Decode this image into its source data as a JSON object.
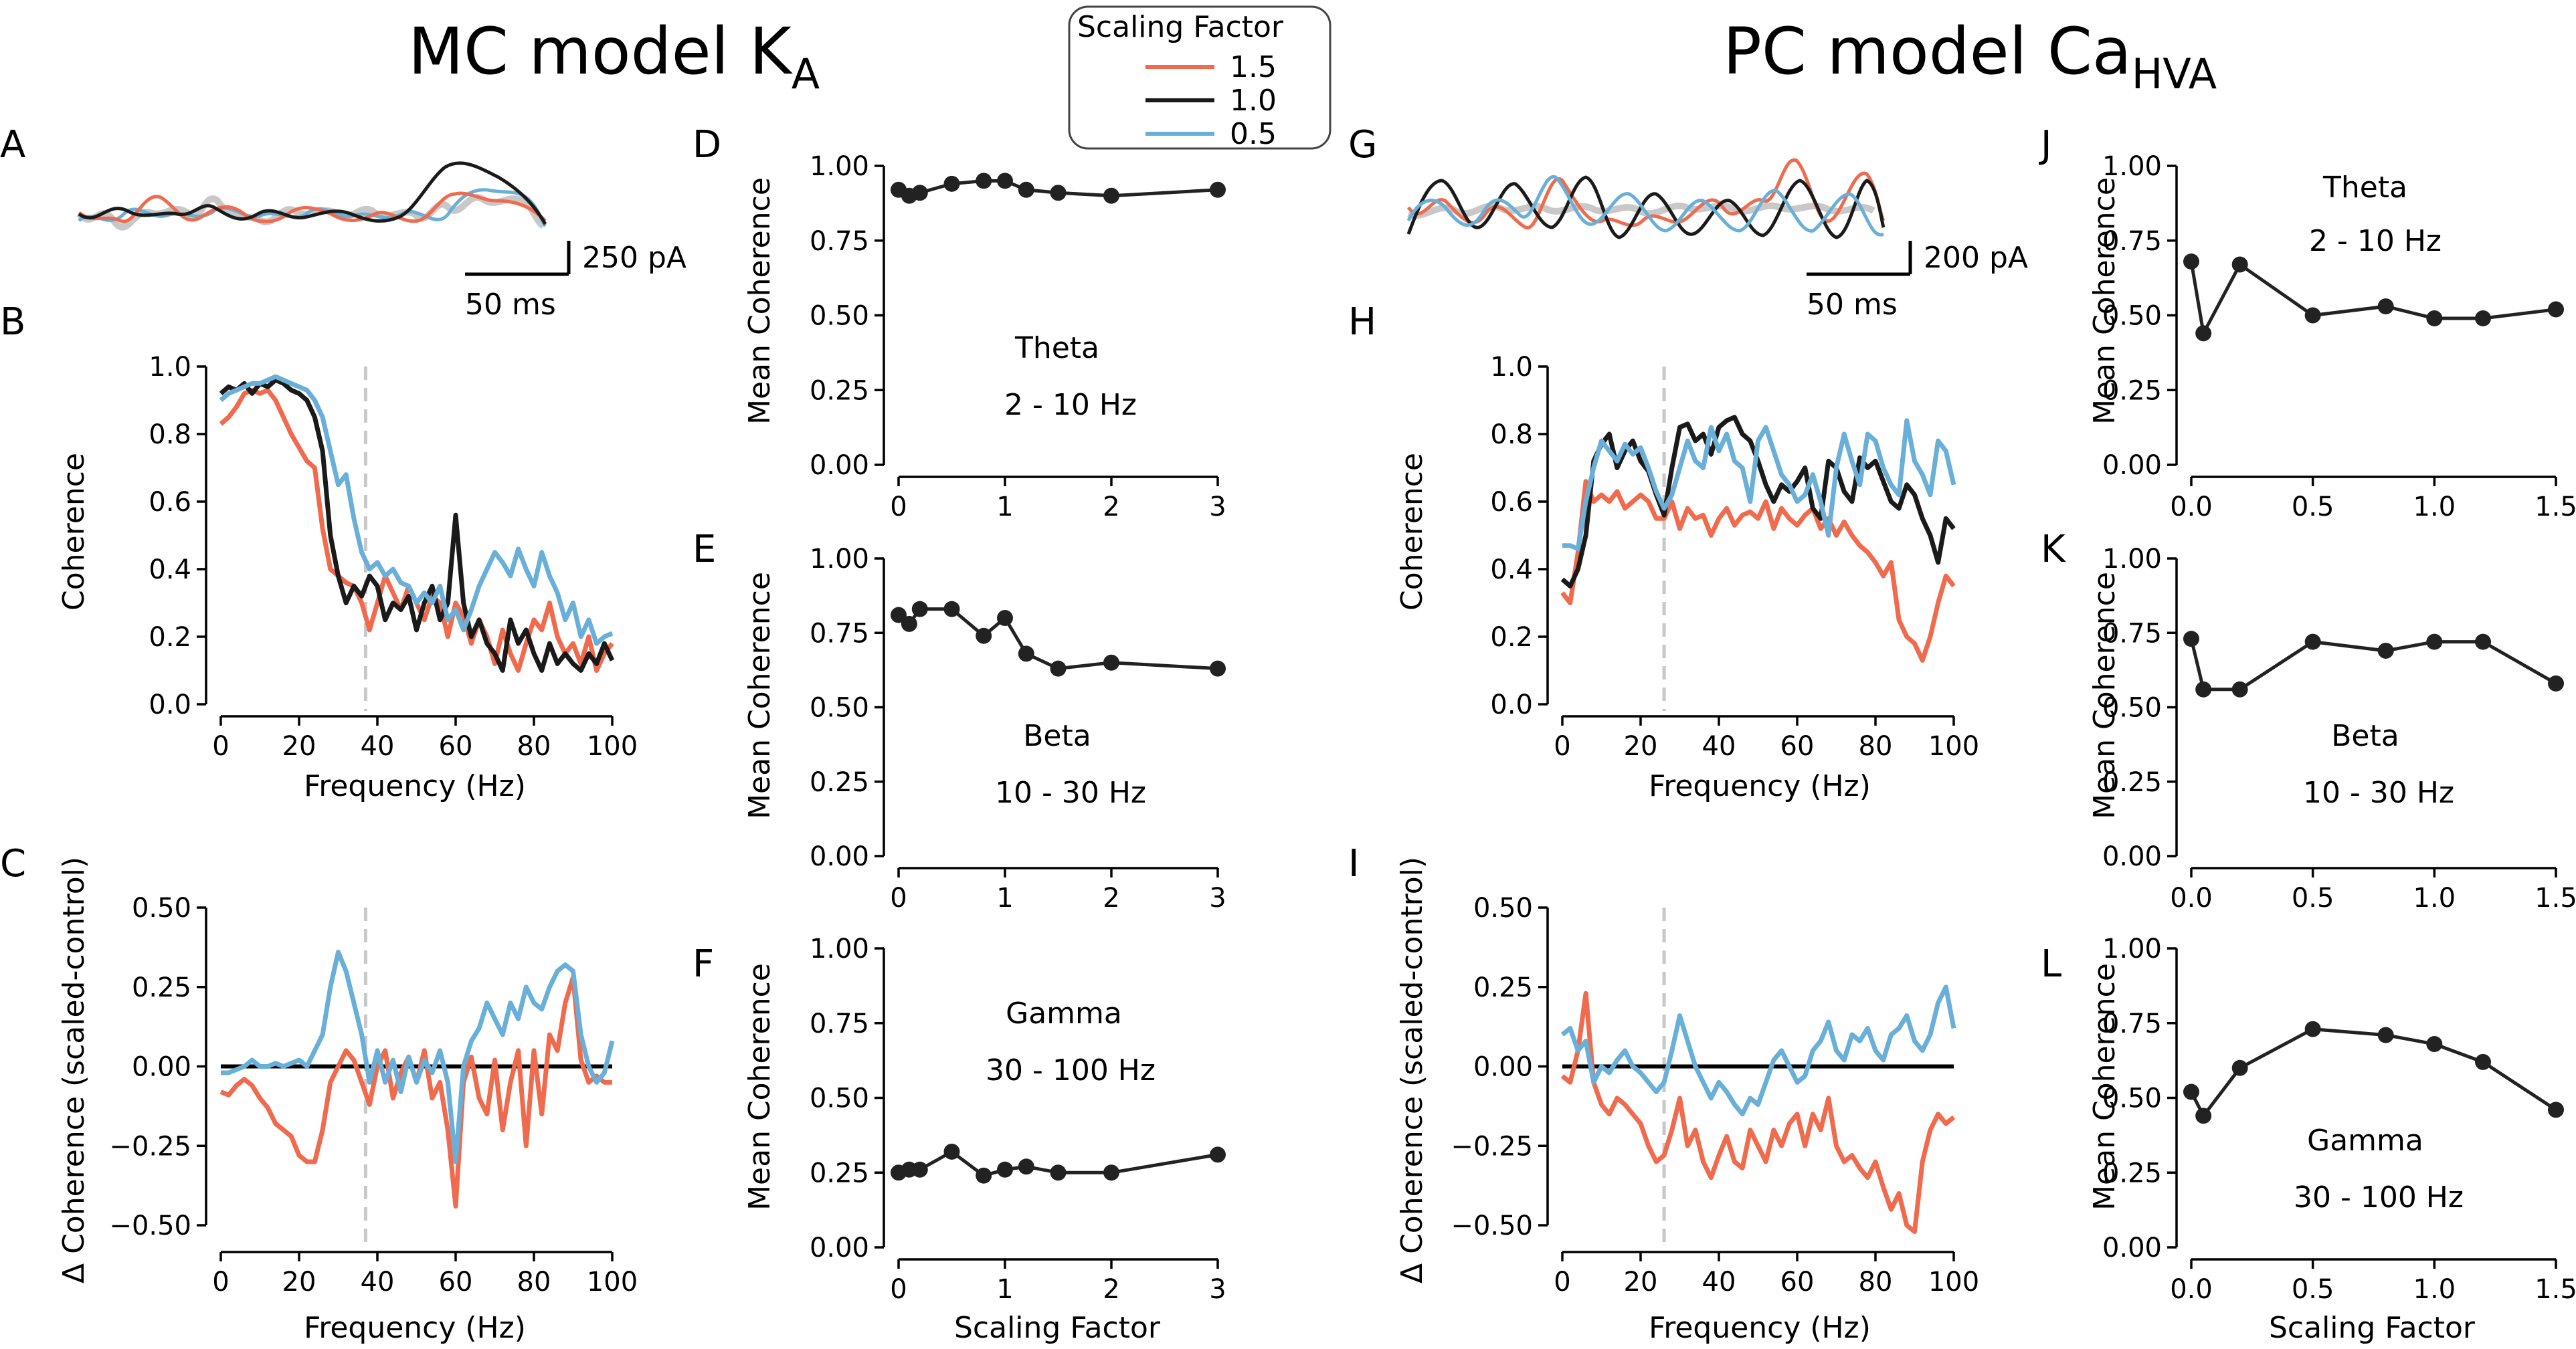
{
  "colors": {
    "s15": "#f06a4d",
    "s10": "#1a1a1a",
    "s05": "#69afd8",
    "trace_gray": "#c8c8c8",
    "dash": "#c8c8c8",
    "point": "#222222"
  },
  "titles": {
    "mc": "MC model K",
    "mc_sub": "A",
    "pc": "PC model Ca",
    "pc_sub": "HVA"
  },
  "legend": {
    "title": "Scaling Factor",
    "entries": [
      "1.5",
      "1.0",
      "0.5"
    ]
  },
  "panel_letters": {
    "A": "A",
    "B": "B",
    "C": "C",
    "D": "D",
    "E": "E",
    "F": "F",
    "G": "G",
    "H": "H",
    "I": "I",
    "J": "J",
    "K": "K",
    "L": "L"
  },
  "scalebars": {
    "A": {
      "current": "250 pA",
      "time": "50 ms"
    },
    "G": {
      "current": "200 pA",
      "time": "50 ms"
    }
  },
  "axis_labels": {
    "coherence": "Coherence",
    "frequency": "Frequency (Hz)",
    "delta": "Δ Coherence (scaled-control)",
    "mean": "Mean Coherence",
    "scaling": "Scaling Factor"
  },
  "bands": {
    "theta": [
      "Theta",
      "2 - 10 Hz"
    ],
    "beta": [
      "Beta",
      "10 - 30 Hz"
    ],
    "gamma": [
      "Gamma",
      "30 - 100 Hz"
    ]
  },
  "chart_data": [
    {
      "panel": "B",
      "type": "line",
      "title": "",
      "xlabel": "Frequency (Hz)",
      "ylabel": "Coherence",
      "xlim": [
        0,
        100
      ],
      "ylim": [
        0,
        1.0
      ],
      "xticks": [
        0,
        20,
        40,
        60,
        80,
        100
      ],
      "yticks": [
        0.0,
        0.2,
        0.4,
        0.6,
        0.8,
        1.0
      ],
      "vline": 37,
      "x": [
        0,
        2,
        4,
        6,
        8,
        10,
        12,
        14,
        16,
        18,
        20,
        22,
        24,
        26,
        28,
        30,
        32,
        34,
        36,
        38,
        40,
        42,
        44,
        46,
        48,
        50,
        52,
        54,
        56,
        58,
        60,
        62,
        64,
        66,
        68,
        70,
        72,
        74,
        76,
        78,
        80,
        82,
        84,
        86,
        88,
        90,
        92,
        94,
        96,
        98,
        100
      ],
      "series": [
        {
          "name": "1.5",
          "values": [
            0.83,
            0.85,
            0.88,
            0.92,
            0.93,
            0.92,
            0.93,
            0.9,
            0.85,
            0.8,
            0.76,
            0.72,
            0.7,
            0.52,
            0.4,
            0.38,
            0.36,
            0.35,
            0.3,
            0.22,
            0.3,
            0.38,
            0.33,
            0.28,
            0.35,
            0.3,
            0.25,
            0.32,
            0.3,
            0.2,
            0.3,
            0.26,
            0.18,
            0.25,
            0.2,
            0.12,
            0.22,
            0.15,
            0.1,
            0.18,
            0.25,
            0.22,
            0.3,
            0.2,
            0.15,
            0.18,
            0.12,
            0.2,
            0.1,
            0.15,
            0.18
          ]
        },
        {
          "name": "1.0",
          "values": [
            0.92,
            0.94,
            0.93,
            0.95,
            0.92,
            0.95,
            0.94,
            0.96,
            0.95,
            0.93,
            0.92,
            0.9,
            0.85,
            0.75,
            0.5,
            0.38,
            0.3,
            0.35,
            0.32,
            0.38,
            0.35,
            0.25,
            0.3,
            0.28,
            0.32,
            0.22,
            0.3,
            0.35,
            0.25,
            0.3,
            0.56,
            0.3,
            0.2,
            0.25,
            0.18,
            0.15,
            0.1,
            0.25,
            0.18,
            0.22,
            0.15,
            0.1,
            0.18,
            0.12,
            0.15,
            0.12,
            0.1,
            0.15,
            0.12,
            0.18,
            0.13
          ]
        },
        {
          "name": "0.5",
          "values": [
            0.9,
            0.92,
            0.93,
            0.94,
            0.95,
            0.95,
            0.96,
            0.97,
            0.96,
            0.95,
            0.94,
            0.93,
            0.9,
            0.85,
            0.75,
            0.65,
            0.68,
            0.55,
            0.45,
            0.4,
            0.42,
            0.38,
            0.4,
            0.36,
            0.35,
            0.3,
            0.33,
            0.3,
            0.35,
            0.25,
            0.28,
            0.22,
            0.28,
            0.35,
            0.4,
            0.45,
            0.42,
            0.38,
            0.46,
            0.4,
            0.35,
            0.45,
            0.38,
            0.33,
            0.25,
            0.3,
            0.2,
            0.25,
            0.18,
            0.2,
            0.21
          ]
        }
      ]
    },
    {
      "panel": "C",
      "type": "line",
      "title": "",
      "xlabel": "Frequency (Hz)",
      "ylabel": "Δ Coherence (scaled-control)",
      "xlim": [
        0,
        100
      ],
      "ylim": [
        -0.6,
        0.5
      ],
      "xticks": [
        0,
        20,
        40,
        60,
        80,
        100
      ],
      "yticks": [
        0.5,
        0.25,
        0.0,
        -0.25,
        -0.5
      ],
      "vline": 37,
      "zero_line": true,
      "x": [
        0,
        2,
        4,
        6,
        8,
        10,
        12,
        14,
        16,
        18,
        20,
        22,
        24,
        26,
        28,
        30,
        32,
        34,
        36,
        38,
        40,
        42,
        44,
        46,
        48,
        50,
        52,
        54,
        56,
        58,
        60,
        62,
        64,
        66,
        68,
        70,
        72,
        74,
        76,
        78,
        80,
        82,
        84,
        86,
        88,
        90,
        92,
        94,
        96,
        98,
        100
      ],
      "series": [
        {
          "name": "1.5",
          "values": [
            -0.08,
            -0.09,
            -0.06,
            -0.04,
            -0.06,
            -0.1,
            -0.13,
            -0.18,
            -0.2,
            -0.22,
            -0.28,
            -0.3,
            -0.3,
            -0.2,
            -0.05,
            0.0,
            0.05,
            0.02,
            -0.05,
            -0.12,
            0.0,
            0.05,
            -0.1,
            -0.02,
            0.03,
            -0.05,
            0.05,
            -0.1,
            -0.05,
            -0.2,
            -0.44,
            -0.05,
            0.03,
            -0.1,
            -0.15,
            0.02,
            -0.2,
            -0.05,
            0.05,
            -0.25,
            0.05,
            -0.15,
            0.1,
            0.05,
            0.2,
            0.28,
            0.02,
            -0.05,
            -0.03,
            -0.05,
            -0.05
          ]
        },
        {
          "name": "0.5",
          "values": [
            -0.02,
            -0.02,
            -0.01,
            0.0,
            0.02,
            0.0,
            0.0,
            0.01,
            0.0,
            0.01,
            0.02,
            0.0,
            0.05,
            0.1,
            0.25,
            0.36,
            0.3,
            0.2,
            0.1,
            -0.05,
            0.05,
            -0.05,
            0.02,
            -0.08,
            0.03,
            -0.05,
            0.02,
            -0.02,
            0.05,
            -0.05,
            -0.3,
            0.0,
            0.08,
            0.12,
            0.2,
            0.15,
            0.1,
            0.2,
            0.15,
            0.25,
            0.2,
            0.18,
            0.25,
            0.3,
            0.32,
            0.3,
            0.1,
            0.0,
            -0.05,
            -0.02,
            0.08
          ]
        }
      ]
    },
    {
      "panel": "D",
      "type": "line",
      "title": "",
      "ylabel": "Mean Coherence",
      "xlim": [
        0,
        3
      ],
      "ylim": [
        0,
        1
      ],
      "xticks": [
        0,
        1,
        2,
        3
      ],
      "yticks": [
        0.0,
        0.25,
        0.5,
        0.75,
        1.0
      ],
      "x": [
        0.0,
        0.1,
        0.2,
        0.5,
        0.8,
        1.0,
        1.2,
        1.5,
        2.0,
        3.0
      ],
      "values": [
        0.92,
        0.9,
        0.91,
        0.94,
        0.95,
        0.95,
        0.92,
        0.91,
        0.9,
        0.92
      ]
    },
    {
      "panel": "E",
      "type": "line",
      "title": "",
      "ylabel": "Mean Coherence",
      "xlim": [
        0,
        3
      ],
      "ylim": [
        0,
        1
      ],
      "xticks": [
        0,
        1,
        2,
        3
      ],
      "yticks": [
        0.0,
        0.25,
        0.5,
        0.75,
        1.0
      ],
      "x": [
        0.0,
        0.1,
        0.2,
        0.5,
        0.8,
        1.0,
        1.2,
        1.5,
        2.0,
        3.0
      ],
      "values": [
        0.81,
        0.78,
        0.83,
        0.83,
        0.74,
        0.8,
        0.68,
        0.63,
        0.65,
        0.63
      ]
    },
    {
      "panel": "F",
      "type": "line",
      "title": "",
      "xlabel": "Scaling Factor",
      "ylabel": "Mean Coherence",
      "xlim": [
        0,
        3
      ],
      "ylim": [
        0,
        1
      ],
      "xticks": [
        0,
        1,
        2,
        3
      ],
      "yticks": [
        0.0,
        0.25,
        0.5,
        0.75,
        1.0
      ],
      "x": [
        0.0,
        0.1,
        0.2,
        0.5,
        0.8,
        1.0,
        1.2,
        1.5,
        2.0,
        3.0
      ],
      "values": [
        0.25,
        0.26,
        0.26,
        0.32,
        0.24,
        0.26,
        0.27,
        0.25,
        0.25,
        0.31
      ]
    },
    {
      "panel": "H",
      "type": "line",
      "title": "",
      "xlabel": "Frequency (Hz)",
      "ylabel": "Coherence",
      "xlim": [
        0,
        100
      ],
      "ylim": [
        0,
        1.0
      ],
      "xticks": [
        0,
        20,
        40,
        60,
        80,
        100
      ],
      "yticks": [
        0.0,
        0.2,
        0.4,
        0.6,
        0.8,
        1.0
      ],
      "vline": 26,
      "x": [
        0,
        2,
        4,
        6,
        8,
        10,
        12,
        14,
        16,
        18,
        20,
        22,
        24,
        26,
        28,
        30,
        32,
        34,
        36,
        38,
        40,
        42,
        44,
        46,
        48,
        50,
        52,
        54,
        56,
        58,
        60,
        62,
        64,
        66,
        68,
        70,
        72,
        74,
        76,
        78,
        80,
        82,
        84,
        86,
        88,
        90,
        92,
        94,
        96,
        98,
        100
      ],
      "series": [
        {
          "name": "1.5",
          "values": [
            0.33,
            0.3,
            0.45,
            0.66,
            0.6,
            0.62,
            0.6,
            0.63,
            0.58,
            0.6,
            0.62,
            0.6,
            0.55,
            0.55,
            0.6,
            0.52,
            0.58,
            0.55,
            0.56,
            0.5,
            0.55,
            0.58,
            0.53,
            0.56,
            0.57,
            0.55,
            0.6,
            0.52,
            0.58,
            0.55,
            0.53,
            0.56,
            0.58,
            0.52,
            0.55,
            0.5,
            0.54,
            0.5,
            0.47,
            0.45,
            0.42,
            0.38,
            0.42,
            0.25,
            0.2,
            0.18,
            0.13,
            0.2,
            0.3,
            0.38,
            0.35
          ]
        },
        {
          "name": "1.0",
          "values": [
            0.37,
            0.35,
            0.4,
            0.5,
            0.72,
            0.77,
            0.8,
            0.7,
            0.75,
            0.78,
            0.72,
            0.69,
            0.62,
            0.56,
            0.7,
            0.82,
            0.83,
            0.78,
            0.8,
            0.74,
            0.82,
            0.84,
            0.85,
            0.8,
            0.78,
            0.72,
            0.65,
            0.6,
            0.65,
            0.63,
            0.66,
            0.7,
            0.58,
            0.55,
            0.72,
            0.7,
            0.63,
            0.6,
            0.73,
            0.7,
            0.72,
            0.66,
            0.6,
            0.58,
            0.65,
            0.62,
            0.55,
            0.5,
            0.42,
            0.55,
            0.52
          ]
        },
        {
          "name": "0.5",
          "values": [
            0.47,
            0.47,
            0.46,
            0.6,
            0.7,
            0.78,
            0.75,
            0.72,
            0.77,
            0.74,
            0.76,
            0.7,
            0.63,
            0.58,
            0.62,
            0.7,
            0.78,
            0.72,
            0.7,
            0.82,
            0.75,
            0.8,
            0.72,
            0.7,
            0.6,
            0.78,
            0.82,
            0.75,
            0.68,
            0.65,
            0.6,
            0.62,
            0.68,
            0.6,
            0.5,
            0.7,
            0.8,
            0.72,
            0.65,
            0.8,
            0.78,
            0.7,
            0.65,
            0.62,
            0.84,
            0.72,
            0.68,
            0.62,
            0.78,
            0.75,
            0.65
          ]
        }
      ]
    },
    {
      "panel": "I",
      "type": "line",
      "title": "",
      "xlabel": "Frequency (Hz)",
      "ylabel": "Δ Coherence (scaled-control)",
      "xlim": [
        0,
        100
      ],
      "ylim": [
        -0.6,
        0.5
      ],
      "xticks": [
        0,
        20,
        40,
        60,
        80,
        100
      ],
      "yticks": [
        0.5,
        0.25,
        0.0,
        -0.25,
        -0.5
      ],
      "vline": 26,
      "zero_line": true,
      "x": [
        0,
        2,
        4,
        6,
        8,
        10,
        12,
        14,
        16,
        18,
        20,
        22,
        24,
        26,
        28,
        30,
        32,
        34,
        36,
        38,
        40,
        42,
        44,
        46,
        48,
        50,
        52,
        54,
        56,
        58,
        60,
        62,
        64,
        66,
        68,
        70,
        72,
        74,
        76,
        78,
        80,
        82,
        84,
        86,
        88,
        90,
        92,
        94,
        96,
        98,
        100
      ],
      "series": [
        {
          "name": "1.5",
          "values": [
            -0.03,
            -0.05,
            0.05,
            0.23,
            -0.05,
            -0.12,
            -0.15,
            -0.1,
            -0.12,
            -0.15,
            -0.18,
            -0.25,
            -0.3,
            -0.28,
            -0.2,
            -0.1,
            -0.25,
            -0.2,
            -0.3,
            -0.35,
            -0.28,
            -0.22,
            -0.3,
            -0.32,
            -0.2,
            -0.25,
            -0.3,
            -0.2,
            -0.25,
            -0.18,
            -0.15,
            -0.25,
            -0.15,
            -0.2,
            -0.1,
            -0.25,
            -0.3,
            -0.28,
            -0.32,
            -0.35,
            -0.3,
            -0.38,
            -0.45,
            -0.4,
            -0.5,
            -0.52,
            -0.3,
            -0.2,
            -0.15,
            -0.18,
            -0.16
          ]
        },
        {
          "name": "0.5",
          "values": [
            0.1,
            0.12,
            0.05,
            0.08,
            -0.05,
            0.0,
            -0.02,
            0.02,
            0.05,
            0.0,
            -0.02,
            -0.05,
            -0.08,
            -0.05,
            0.05,
            0.16,
            0.08,
            0.0,
            -0.05,
            -0.1,
            -0.05,
            -0.08,
            -0.12,
            -0.15,
            -0.1,
            -0.12,
            -0.05,
            0.02,
            0.05,
            0.0,
            -0.05,
            -0.03,
            0.05,
            0.08,
            0.14,
            0.05,
            0.02,
            0.1,
            0.08,
            0.12,
            0.05,
            0.02,
            0.1,
            0.12,
            0.16,
            0.08,
            0.05,
            0.1,
            0.2,
            0.25,
            0.12
          ]
        }
      ]
    },
    {
      "panel": "J",
      "type": "line",
      "title": "",
      "ylabel": "Mean Coherence",
      "xlim": [
        0,
        1.5
      ],
      "ylim": [
        0,
        1
      ],
      "xticks": [
        0.0,
        0.5,
        1.0,
        1.5
      ],
      "yticks": [
        0.0,
        0.25,
        0.5,
        0.75,
        1.0
      ],
      "x": [
        0.0,
        0.05,
        0.2,
        0.5,
        0.8,
        1.0,
        1.2,
        1.5
      ],
      "values": [
        0.68,
        0.44,
        0.67,
        0.5,
        0.53,
        0.49,
        0.49,
        0.52
      ]
    },
    {
      "panel": "K",
      "type": "line",
      "title": "",
      "ylabel": "Mean Coherence",
      "xlim": [
        0,
        1.5
      ],
      "ylim": [
        0,
        1
      ],
      "xticks": [
        0.0,
        0.5,
        1.0,
        1.5
      ],
      "yticks": [
        0.0,
        0.25,
        0.5,
        0.75,
        1.0
      ],
      "x": [
        0.0,
        0.05,
        0.2,
        0.5,
        0.8,
        1.0,
        1.2,
        1.5
      ],
      "values": [
        0.73,
        0.56,
        0.56,
        0.72,
        0.69,
        0.72,
        0.72,
        0.58
      ]
    },
    {
      "panel": "L",
      "type": "line",
      "title": "",
      "xlabel": "Scaling Factor",
      "ylabel": "Mean Coherence",
      "xlim": [
        0,
        1.5
      ],
      "ylim": [
        0,
        1
      ],
      "xticks": [
        0.0,
        0.5,
        1.0,
        1.5
      ],
      "yticks": [
        0.0,
        0.25,
        0.5,
        0.75,
        1.0
      ],
      "x": [
        0.0,
        0.05,
        0.2,
        0.5,
        0.8,
        1.0,
        1.2,
        1.5
      ],
      "values": [
        0.52,
        0.44,
        0.6,
        0.73,
        0.71,
        0.68,
        0.62,
        0.46
      ]
    }
  ]
}
